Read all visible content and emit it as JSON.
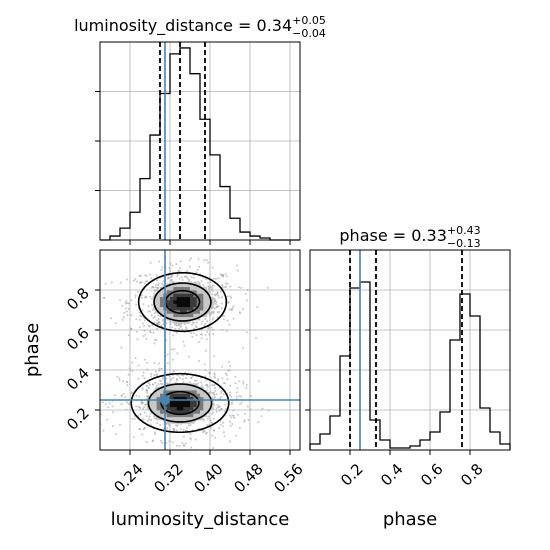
{
  "colors": {
    "truth": "#4682b4",
    "hist": "#000000",
    "grid": "#b0b0b0",
    "scatter": "#9a9a9a"
  },
  "chart_data": [
    {
      "type": "histogram",
      "panel": "top-left",
      "parameter": "luminosity_distance",
      "title_main": "luminosity_distance = 0.34",
      "title_sup": "+0.05",
      "title_sub": "−0.04",
      "xlim": [
        0.18,
        0.58
      ],
      "ylim": [
        0,
        1.0
      ],
      "grid": true,
      "x_tick_values": [
        0.24,
        0.32,
        0.4,
        0.48,
        0.56
      ],
      "bin_edges": [
        0.18,
        0.2,
        0.22,
        0.24,
        0.26,
        0.28,
        0.3,
        0.32,
        0.34,
        0.36,
        0.38,
        0.4,
        0.42,
        0.44,
        0.46,
        0.48,
        0.5,
        0.52,
        0.54,
        0.56,
        0.58
      ],
      "counts": [
        0,
        0.02,
        0.06,
        0.14,
        0.31,
        0.53,
        0.74,
        0.94,
        0.97,
        0.84,
        0.61,
        0.43,
        0.27,
        0.11,
        0.04,
        0.02,
        0.01,
        0,
        0,
        0
      ],
      "quantiles": [
        0.3,
        0.34,
        0.39
      ],
      "truth": 0.31
    },
    {
      "type": "scatter",
      "panel": "bottom-left",
      "x_parameter": "luminosity_distance",
      "y_parameter": "phase",
      "xlabel": "luminosity_distance",
      "ylabel": "phase",
      "xlim": [
        0.18,
        0.58
      ],
      "ylim": [
        0.0,
        1.0
      ],
      "x_tick_values": [
        0.24,
        0.32,
        0.4,
        0.48,
        0.56
      ],
      "x_tick_labels": [
        "0.24",
        "0.32",
        "0.40",
        "0.48",
        "0.56"
      ],
      "y_tick_values": [
        0.2,
        0.4,
        0.6,
        0.8
      ],
      "y_tick_labels": [
        "0.2",
        "0.4",
        "0.6",
        "0.8"
      ],
      "modes": [
        {
          "x": 0.345,
          "y": 0.74,
          "sx": 0.045,
          "sy": 0.075
        },
        {
          "x": 0.34,
          "y": 0.235,
          "sx": 0.05,
          "sy": 0.075
        }
      ],
      "contour_levels": [
        0.4,
        0.8,
        1.2,
        1.6
      ],
      "truth": {
        "x": 0.31,
        "y": 0.25
      }
    },
    {
      "type": "histogram",
      "panel": "bottom-right",
      "parameter": "phase",
      "title_main": "phase = 0.33",
      "title_sup": "+0.43",
      "title_sub": "−0.13",
      "xlabel": "phase",
      "xlim": [
        0.0,
        1.0
      ],
      "ylim": [
        0,
        1.0
      ],
      "grid": true,
      "x_tick_values": [
        0.2,
        0.4,
        0.6,
        0.8
      ],
      "x_tick_labels": [
        "0.2",
        "0.4",
        "0.6",
        "0.8"
      ],
      "bin_edges": [
        0.0,
        0.05,
        0.1,
        0.15,
        0.2,
        0.25,
        0.3,
        0.35,
        0.4,
        0.45,
        0.5,
        0.55,
        0.6,
        0.65,
        0.7,
        0.75,
        0.8,
        0.85,
        0.9,
        0.95,
        1.0
      ],
      "counts": [
        0.03,
        0.08,
        0.17,
        0.47,
        0.81,
        0.84,
        0.15,
        0.05,
        0.01,
        0.01,
        0.02,
        0.05,
        0.09,
        0.19,
        0.55,
        0.78,
        0.67,
        0.21,
        0.09,
        0.03
      ],
      "quantiles": [
        0.2,
        0.33,
        0.76
      ],
      "truth": 0.25
    }
  ]
}
